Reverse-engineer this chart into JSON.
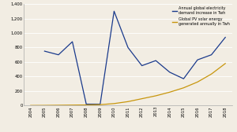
{
  "years": [
    2004,
    2005,
    2006,
    2007,
    2008,
    2009,
    2010,
    2011,
    2012,
    2013,
    2014,
    2015,
    2016,
    2017,
    2018
  ],
  "demand": [
    null,
    750,
    700,
    880,
    20,
    20,
    1300,
    800,
    550,
    620,
    460,
    370,
    630,
    700,
    940
  ],
  "solar": [
    2,
    3,
    5,
    7,
    9,
    13,
    28,
    55,
    95,
    135,
    185,
    245,
    325,
    435,
    580
  ],
  "demand_color": "#1a3a8c",
  "solar_color": "#c8960c",
  "legend_demand": "Annual global electricity\ndemand increase in Twh",
  "legend_solar": "Global PV solar energy\ngenerated annually in Twh",
  "ylim": [
    0,
    1400
  ],
  "yticks": [
    0,
    200,
    400,
    600,
    800,
    1000,
    1200,
    1400
  ],
  "bg_color": "#f2ede3",
  "grid_color": "#ffffff",
  "spine_color": "#aaaaaa"
}
